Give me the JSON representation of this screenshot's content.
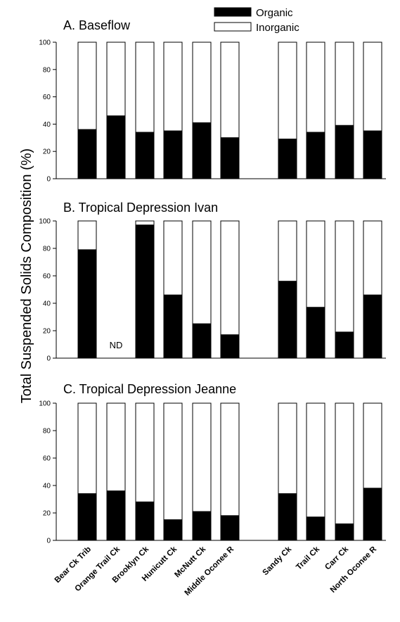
{
  "chart_data": {
    "type": "bar",
    "stacked": true,
    "ylabel": "Total Suspended Solids Composition (%)",
    "ylim": [
      0,
      100
    ],
    "yticks": [
      0,
      20,
      40,
      60,
      80,
      100
    ],
    "categories": [
      "Bear Ck Trib",
      "Orange Trail Ck",
      "Brooklyn Ck",
      "Hunicutt Ck",
      "McNutt Ck",
      "Middle Oconee R",
      "Sandy Ck",
      "Trail Ck",
      "Carr Ck",
      "North Oconee R"
    ],
    "legend": {
      "placement": "top-center",
      "items": [
        {
          "name": "Organic",
          "color": "#000000"
        },
        {
          "name": "Inorganic",
          "color": "#ffffff"
        }
      ]
    },
    "panels": [
      {
        "title": "A. Baseflow",
        "organic": [
          36,
          46,
          34,
          35,
          41,
          30,
          29,
          34,
          39,
          35
        ],
        "inorganic": [
          64,
          54,
          66,
          65,
          59,
          70,
          71,
          66,
          61,
          65
        ]
      },
      {
        "title": "B. Tropical Depression Ivan",
        "organic": [
          79,
          null,
          97,
          46,
          25,
          17,
          56,
          37,
          19,
          46
        ],
        "inorganic": [
          21,
          null,
          3,
          54,
          75,
          83,
          44,
          63,
          81,
          54
        ],
        "annotation": {
          "category": "Orange Trail Ck",
          "text": "ND"
        }
      },
      {
        "title": "C. Tropical Depression Jeanne",
        "organic": [
          34,
          36,
          28,
          15,
          21,
          18,
          34,
          17,
          12,
          38
        ],
        "inorganic": [
          66,
          64,
          72,
          85,
          79,
          82,
          66,
          83,
          88,
          62
        ]
      }
    ]
  }
}
